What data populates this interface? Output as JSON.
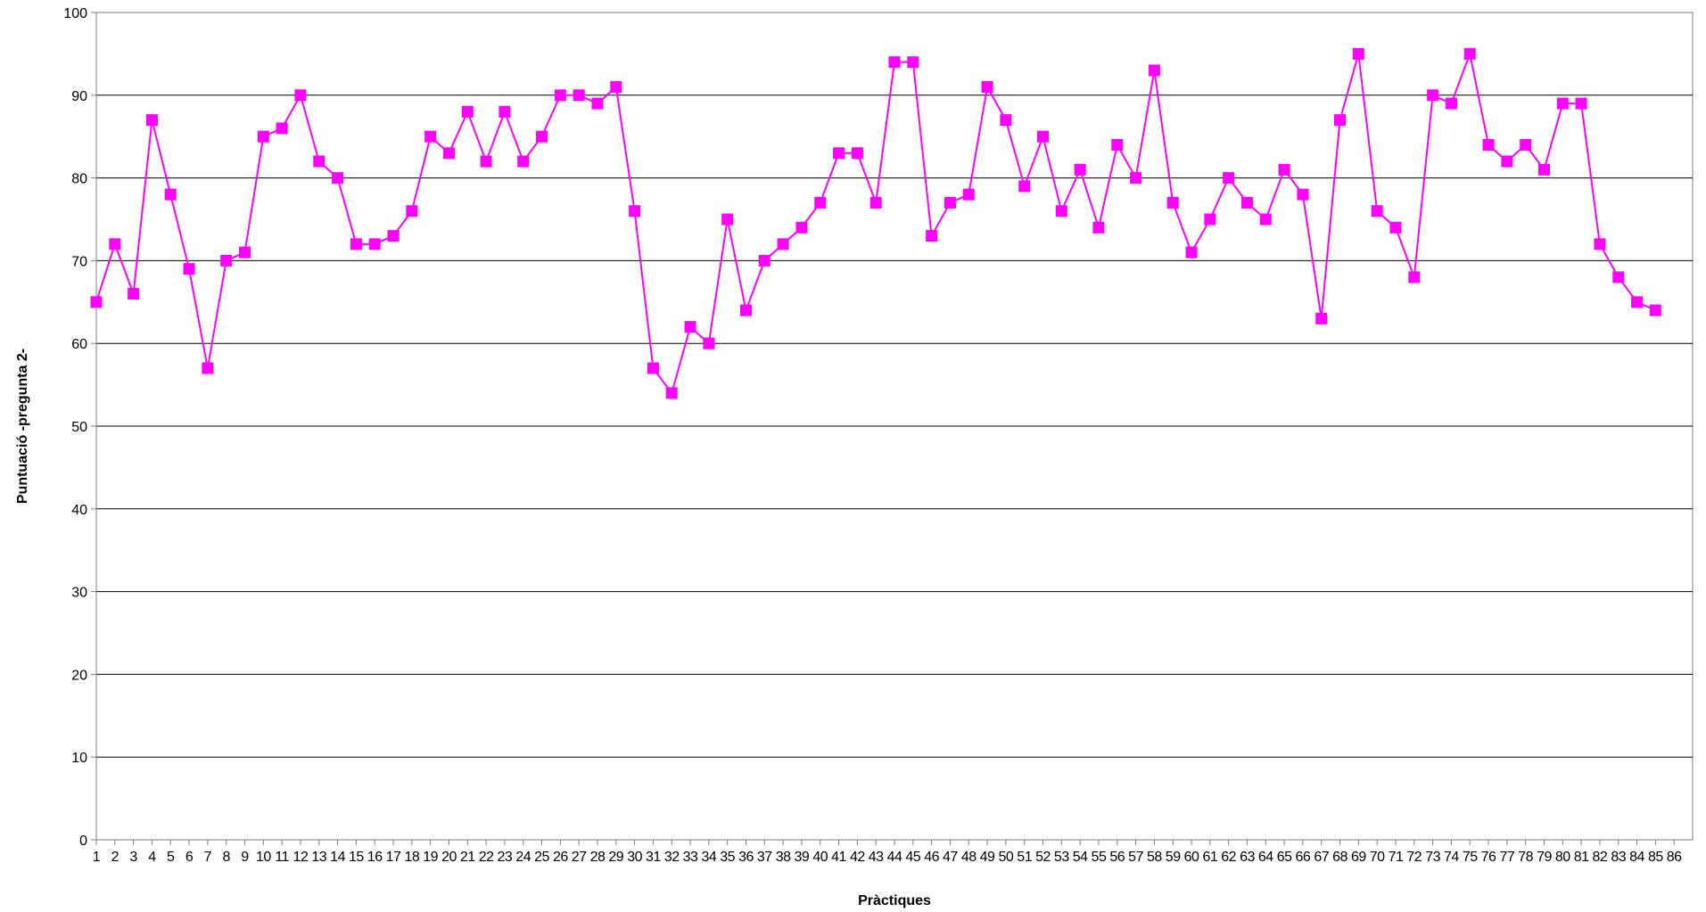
{
  "chart_data": {
    "type": "line",
    "title": "",
    "xlabel": "Pràctiques",
    "ylabel": "Puntuació -pregunta 2-",
    "ylim": [
      0,
      100
    ],
    "y_ticks": [
      0,
      10,
      20,
      30,
      40,
      50,
      60,
      70,
      80,
      90,
      100
    ],
    "grid": "horizontal",
    "legend": "none",
    "marker": "square",
    "colors": {
      "series": "#FF00FF",
      "grid": "#000000",
      "axis": "#808080",
      "background": "#FFFFFF"
    },
    "x_tick_labels": [
      "1",
      "2",
      "3",
      "4",
      "5",
      "6",
      "7",
      "8",
      "9",
      "10",
      "11",
      "12",
      "13",
      "14",
      "15",
      "16",
      "17",
      "18",
      "19",
      "20",
      "21",
      "22",
      "23",
      "24",
      "25",
      "26",
      "27",
      "28",
      "29",
      "30",
      "31",
      "32",
      "33",
      "34",
      "35",
      "36",
      "37",
      "38",
      "39",
      "40",
      "41",
      "42",
      "43",
      "44",
      "45",
      "46",
      "47",
      "48",
      "49",
      "50",
      "51",
      "52",
      "53",
      "54",
      "55",
      "56",
      "57",
      "58",
      "59",
      "60",
      "61",
      "62",
      "63",
      "64",
      "65",
      "66",
      "67",
      "68",
      "69",
      "70",
      "71",
      "72",
      "73",
      "74",
      "75",
      "76",
      "77",
      "78",
      "79",
      "80",
      "81",
      "82",
      "83",
      "84",
      "85",
      "86"
    ],
    "series": [
      {
        "x": [
          1,
          2,
          3,
          4,
          5,
          6,
          7,
          8,
          9,
          10,
          11,
          12,
          13,
          14,
          15,
          16,
          17,
          18,
          19,
          20,
          21,
          22,
          23,
          24,
          25,
          26,
          27,
          28,
          29,
          30,
          31,
          32,
          33,
          34,
          35,
          36,
          37,
          38,
          39,
          40,
          41,
          42,
          43,
          44,
          45,
          46,
          47,
          48,
          49,
          50,
          51,
          52,
          53,
          54,
          55,
          56,
          57,
          58,
          59,
          60,
          61,
          62,
          63,
          64,
          65,
          66,
          67,
          68,
          69,
          70,
          71,
          72,
          73,
          74,
          75,
          76,
          77,
          78,
          79,
          80,
          81,
          82,
          83,
          84,
          85
        ],
        "values": [
          65,
          72,
          66,
          87,
          78,
          69,
          57,
          70,
          71,
          85,
          86,
          90,
          82,
          80,
          72,
          72,
          73,
          76,
          85,
          83,
          88,
          82,
          88,
          82,
          85,
          90,
          90,
          89,
          91,
          76,
          57,
          54,
          62,
          60,
          75,
          64,
          70,
          72,
          74,
          77,
          83,
          83,
          77,
          94,
          94,
          73,
          77,
          78,
          91,
          87,
          79,
          85,
          76,
          81,
          74,
          84,
          80,
          93,
          77,
          71,
          75,
          80,
          77,
          75,
          81,
          78,
          63,
          87,
          95,
          76,
          74,
          68,
          90,
          89,
          95,
          84,
          82,
          84,
          81,
          89,
          89,
          72,
          68,
          65,
          64
        ]
      }
    ]
  }
}
